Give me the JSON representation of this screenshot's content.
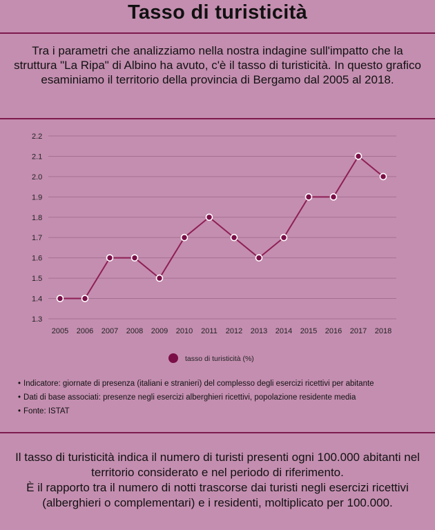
{
  "title": "Tasso di turisticità",
  "intro": "Tra i parametri che analizziamo nella nostra indagine sull'impatto che la struttura \"La Ripa\" di Albino ha avuto, c'è il tasso di turisticità. In questo grafico esaminiamo il territorio della provincia di Bergamo dal 2005 al 2018.",
  "notes": [
    "Indicatore: giornate di presenza (italiani e stranieri) del complesso degli esercizi ricettivi  per abitante",
    "Dati di base associati: presenze negli esercizi alberghieri ricettivi, popolazione residente media",
    "Fonte: ISTAT"
  ],
  "footer": [
    "Il tasso di turisticità indica il numero di turisti presenti ogni 100.000 abitanti nel territorio considerato e nel periodo di riferimento.",
    "È il rapporto tra il numero di notti trascorse dai turisti negli esercizi ricettivi (alberghieri o complementari) e i residenti, moltiplicato per 100.000."
  ],
  "colors": {
    "background": "#c48eb0",
    "accent": "#7d1a4e",
    "line": "#8e1f55",
    "marker": "#7a0f47",
    "grid": "#a37092"
  },
  "chart_data": {
    "type": "line",
    "x": [
      "2005",
      "2006",
      "2007",
      "2008",
      "2009",
      "2010",
      "2011",
      "2012",
      "2013",
      "2014",
      "2015",
      "2016",
      "2017",
      "2018"
    ],
    "series": [
      {
        "name": "tasso di turisticità (%)",
        "values": [
          1.4,
          1.4,
          1.6,
          1.6,
          1.5,
          1.7,
          1.8,
          1.7,
          1.6,
          1.7,
          1.9,
          1.9,
          2.1,
          2.0
        ]
      }
    ],
    "yticks": [
      "1.3",
      "1.4",
      "1.5",
      "1.6",
      "1.7",
      "1.8",
      "1.9",
      "2.0",
      "2.1",
      "2.2"
    ],
    "ylim": [
      1.3,
      2.2
    ],
    "grid": true,
    "legend": "bottom-center"
  }
}
